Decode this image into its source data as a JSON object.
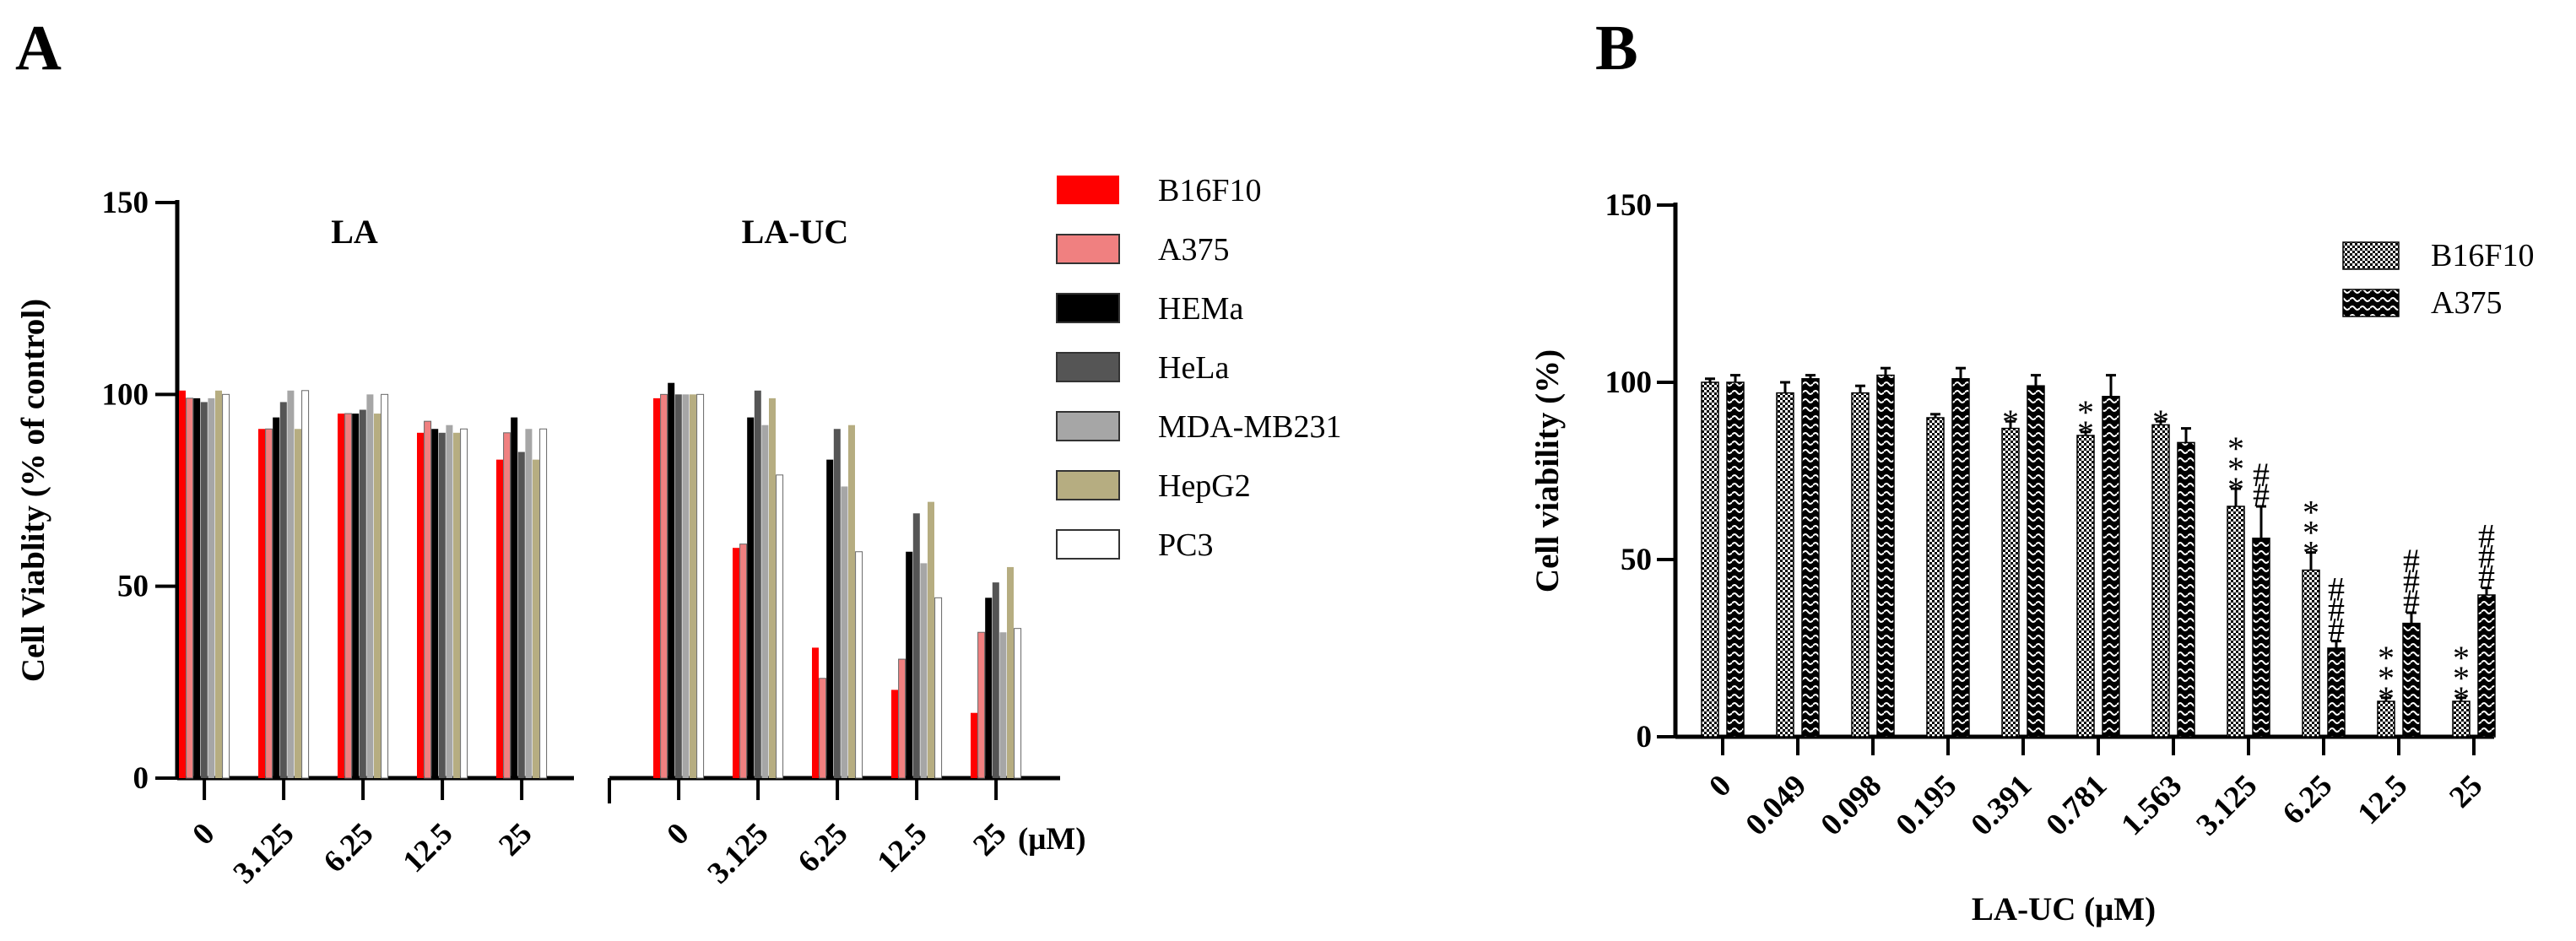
{
  "colors": {
    "B16F10": "#ff0000",
    "A375": "#f08080",
    "HEMa": "#000000",
    "HeLa": "#555555",
    "MDA-MB231": "#a6a6a6",
    "HepG2": "#b6ad81",
    "PC3": "#ffffff"
  },
  "chart_data": [
    {
      "panel": "A",
      "type": "bar",
      "ylabel": "Cell Viablity (% of control)",
      "ylim": [
        0,
        150
      ],
      "yticks": [
        0,
        50,
        100,
        150
      ],
      "unit": "(μM)",
      "groups": [
        {
          "title": "LA",
          "categories": [
            "0",
            "3.125",
            "6.25",
            "12.5",
            "25"
          ],
          "series": [
            {
              "name": "B16F10",
              "values": [
                101,
                91,
                95,
                90,
                83
              ]
            },
            {
              "name": "A375",
              "values": [
                99,
                91,
                95,
                93,
                90
              ]
            },
            {
              "name": "HEMa",
              "values": [
                99,
                94,
                95,
                91,
                94
              ]
            },
            {
              "name": "HeLa",
              "values": [
                98,
                98,
                96,
                90,
                85
              ]
            },
            {
              "name": "MDA-MB231",
              "values": [
                99,
                101,
                100,
                92,
                91
              ]
            },
            {
              "name": "HepG2",
              "values": [
                101,
                91,
                95,
                90,
                83
              ]
            },
            {
              "name": "PC3",
              "values": [
                100,
                101,
                100,
                91,
                91
              ]
            }
          ]
        },
        {
          "title": "LA-UC",
          "categories": [
            "0",
            "3.125",
            "6.25",
            "12.5",
            "25"
          ],
          "series": [
            {
              "name": "B16F10",
              "values": [
                99,
                60,
                34,
                23,
                17
              ]
            },
            {
              "name": "A375",
              "values": [
                100,
                61,
                26,
                31,
                38
              ]
            },
            {
              "name": "HEMa",
              "values": [
                103,
                94,
                83,
                59,
                47
              ]
            },
            {
              "name": "HeLa",
              "values": [
                100,
                101,
                91,
                69,
                51
              ]
            },
            {
              "name": "MDA-MB231",
              "values": [
                100,
                92,
                76,
                56,
                38
              ]
            },
            {
              "name": "HepG2",
              "values": [
                100,
                99,
                92,
                72,
                55
              ]
            },
            {
              "name": "PC3",
              "values": [
                100,
                79,
                59,
                47,
                39
              ]
            }
          ]
        }
      ],
      "legend": [
        "B16F10",
        "A375",
        "HEMa",
        "HeLa",
        "MDA-MB231",
        "HepG2",
        "PC3"
      ],
      "legend_position": "right"
    },
    {
      "panel": "B",
      "type": "bar",
      "xlabel": "LA-UC (μM)",
      "ylabel": "Cell viability (%)",
      "ylim": [
        0,
        150
      ],
      "yticks": [
        0,
        50,
        100,
        150
      ],
      "categories": [
        "0",
        "0.049",
        "0.098",
        "0.195",
        "0.391",
        "0.781",
        "1.563",
        "3.125",
        "6.25",
        "12.5",
        "25"
      ],
      "series": [
        {
          "name": "B16F10",
          "values": [
            100,
            97,
            97,
            90,
            87,
            85,
            88,
            65,
            47,
            10,
            10
          ],
          "errors": [
            1,
            3,
            2,
            1,
            2,
            1,
            1,
            5,
            5,
            1,
            1
          ],
          "significance": [
            "",
            "",
            "",
            "",
            "*",
            "**",
            "*",
            "***",
            "***",
            "***",
            "***"
          ]
        },
        {
          "name": "A375",
          "values": [
            100,
            101,
            102,
            101,
            99,
            96,
            83,
            56,
            25,
            32,
            40
          ],
          "errors": [
            2,
            1,
            2,
            3,
            3,
            6,
            4,
            9,
            2,
            3,
            2
          ],
          "significance": [
            "",
            "",
            "",
            "",
            "",
            "",
            "",
            "##",
            "###",
            "###",
            "###"
          ]
        }
      ],
      "legend": [
        "B16F10",
        "A375"
      ],
      "legend_position": "top-right"
    }
  ]
}
